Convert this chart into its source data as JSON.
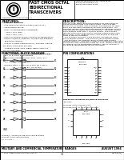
{
  "title_center": "FAST CMOS OCTAL\nBIDIRECTIONAL\nTRANSCEIVERS",
  "title_right": "IDT54/74FCT645ACTQT - 84SF-M-QT\nIDT54/74FCT645BCTQT\nIDT54/74FCT645CTSOB",
  "company": "Integrated Device Technology, Inc.",
  "features_title": "FEATURES:",
  "description_title": "DESCRIPTION:",
  "functional_block_title": "FUNCTIONAL BLOCK DIAGRAM",
  "pin_config_title": "PIN CONFIGURATIONS",
  "footer_left": "MILITARY AND COMMERCIAL TEMPERATURE RANGES",
  "footer_right": "AUGUST 1994",
  "footer_page": "3-1",
  "part_number": "DSC-81131\n1",
  "bg_color": "#ffffff",
  "border_color": "#000000"
}
